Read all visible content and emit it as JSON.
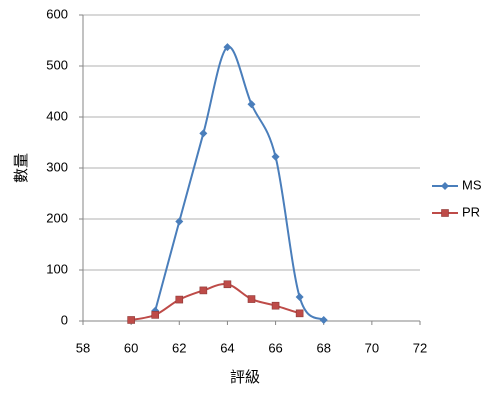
{
  "chart_data": {
    "type": "line",
    "xlabel": "評級",
    "ylabel": "數量",
    "xlim": [
      58,
      72
    ],
    "xticks": [
      58,
      60,
      62,
      64,
      66,
      68,
      70,
      72
    ],
    "ylim": [
      0,
      600
    ],
    "yticks": [
      0,
      100,
      200,
      300,
      400,
      500,
      600
    ],
    "grid": true,
    "smooth": true,
    "legend": "right",
    "series": [
      {
        "name": "MS",
        "color": "#4a7ebb",
        "marker": "diamond",
        "x": [
          61,
          62,
          63,
          64,
          65,
          66,
          67,
          68
        ],
        "values": [
          20,
          195,
          368,
          537,
          425,
          322,
          47,
          2
        ]
      },
      {
        "name": "PR",
        "color": "#be4b48",
        "marker": "square",
        "x": [
          60,
          61,
          62,
          63,
          64,
          65,
          66,
          67
        ],
        "values": [
          2,
          12,
          42,
          60,
          72,
          43,
          30,
          15
        ]
      }
    ]
  }
}
